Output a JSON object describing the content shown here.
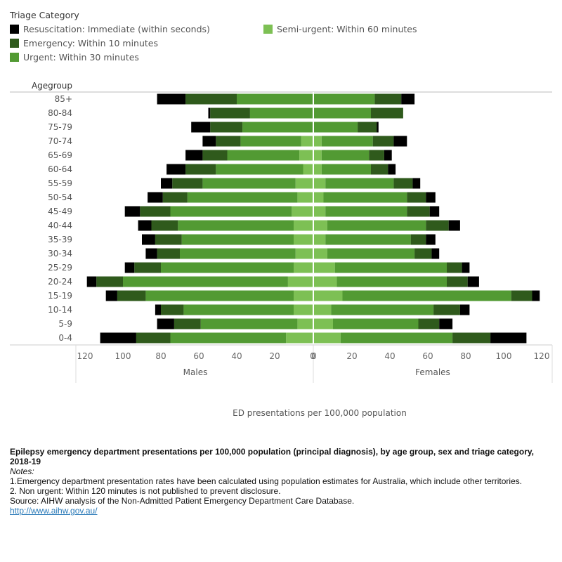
{
  "legend": {
    "title": "Triage Category",
    "items": [
      {
        "label": "Resuscitation: Immediate (within seconds)",
        "color": "#000000"
      },
      {
        "label": "Emergency: Within 10 minutes",
        "color": "#2f5a1c"
      },
      {
        "label": "Urgent: Within 30 minutes",
        "color": "#529a33"
      },
      {
        "label": "Semi-urgent: Within 60 minutes",
        "color": "#7dc054"
      }
    ]
  },
  "chart_data": {
    "type": "bar",
    "orientation": "horizontal",
    "layout": "population-pyramid",
    "ylabel": "Agegroup",
    "xlabel": "ED presentations per 100,000 population",
    "panels": [
      "Males",
      "Females"
    ],
    "xlim": [
      0,
      120
    ],
    "xticks": [
      120,
      100,
      80,
      60,
      40,
      20,
      0
    ],
    "xticks_right": [
      0,
      20,
      40,
      60,
      80,
      100,
      120
    ],
    "categories": [
      "85+",
      "80-84",
      "75-79",
      "70-74",
      "65-69",
      "60-64",
      "55-59",
      "50-54",
      "45-49",
      "40-44",
      "35-39",
      "30-34",
      "25-29",
      "20-24",
      "15-19",
      "10-14",
      "5-9",
      "0-4"
    ],
    "series": [
      {
        "name": "Semi-urgent: Within 60 minutes",
        "color": "#7dc054",
        "males": [
          0,
          0,
          0,
          6,
          7,
          5,
          9,
          8,
          11,
          10,
          10,
          9,
          10,
          13,
          10,
          10,
          8,
          14
        ],
        "females": [
          0,
          0,
          0,
          4,
          4,
          4,
          6,
          5,
          6,
          7,
          6,
          7,
          11,
          12,
          15,
          9,
          10,
          14
        ]
      },
      {
        "name": "Urgent: Within 30 minutes",
        "color": "#529a33",
        "males": [
          40,
          33,
          37,
          32,
          38,
          46,
          49,
          58,
          64,
          61,
          59,
          61,
          70,
          87,
          78,
          58,
          51,
          61
        ],
        "females": [
          32,
          30,
          23,
          27,
          25,
          26,
          36,
          44,
          43,
          52,
          45,
          46,
          59,
          58,
          89,
          54,
          45,
          59
        ]
      },
      {
        "name": "Emergency: Within 10 minutes",
        "color": "#2f5a1c",
        "males": [
          27,
          21,
          17,
          13,
          13,
          16,
          16,
          13,
          16,
          14,
          14,
          12,
          14,
          14,
          15,
          12,
          14,
          18
        ],
        "females": [
          14,
          17,
          10,
          11,
          8,
          9,
          10,
          10,
          12,
          12,
          8,
          9,
          8,
          11,
          11,
          14,
          11,
          20
        ]
      },
      {
        "name": "Resuscitation: Immediate (within seconds)",
        "color": "#000000",
        "males": [
          15,
          1,
          10,
          7,
          9,
          10,
          6,
          8,
          8,
          7,
          7,
          6,
          5,
          5,
          6,
          3,
          9,
          19
        ],
        "females": [
          7,
          0,
          1,
          7,
          4,
          4,
          4,
          5,
          5,
          6,
          5,
          4,
          4,
          6,
          4,
          5,
          7,
          19
        ]
      }
    ]
  },
  "footer": {
    "title": "Epilepsy emergency department presentations per 100,000 population (principal diagnosis), by age group, sex and triage category, 2018-19",
    "notes_label": "Notes:",
    "note1": "1.Emergency department presentation rates have been calculated using population estimates for Australia, which include other territories.",
    "note2": "2. Non urgent: Within 120 minutes is not published to prevent disclosure.",
    "source": "Source: AIHW analysis of the Non-Admitted Patient Emergency Department Care Database.",
    "link": "http://www.aihw.gov.au/"
  }
}
